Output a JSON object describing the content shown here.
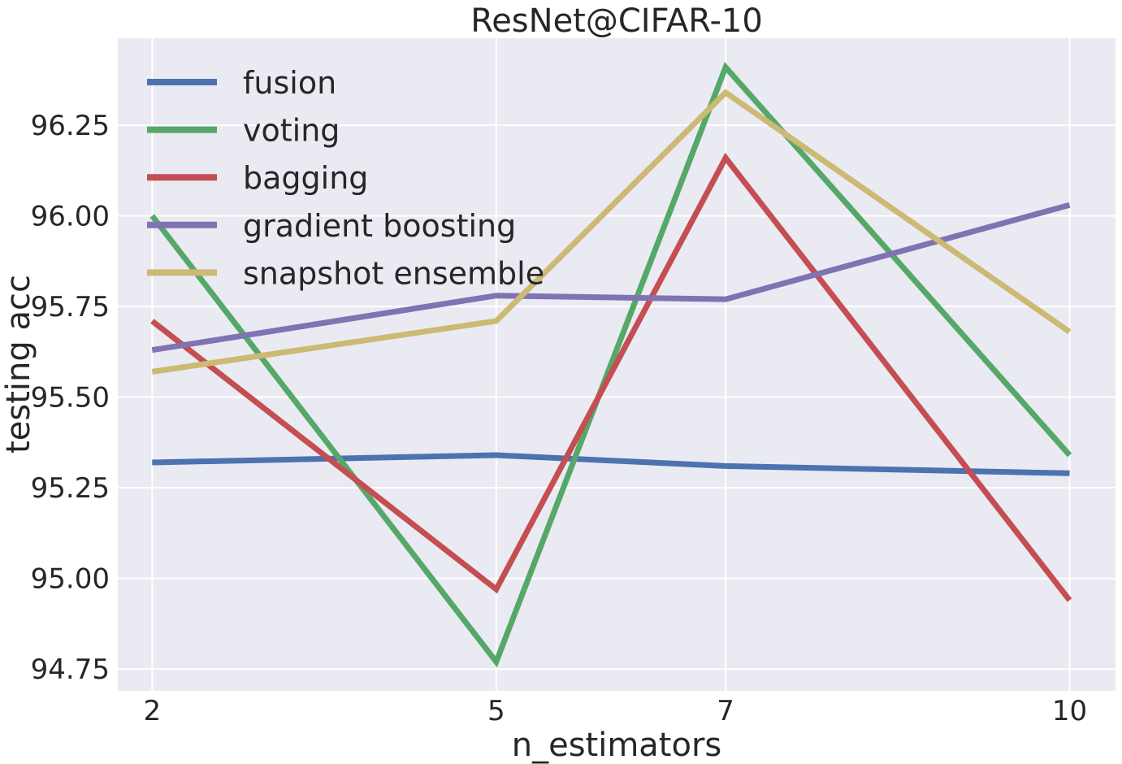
{
  "chart_data": {
    "type": "line",
    "title": "ResNet@CIFAR-10",
    "xlabel": "n_estimators",
    "ylabel": "testing acc",
    "x": [
      2,
      5,
      7,
      10
    ],
    "xticks": [
      2,
      5,
      7,
      10
    ],
    "xlim": [
      1.7,
      10.4
    ],
    "yticks": [
      94.75,
      95.0,
      95.25,
      95.5,
      95.75,
      96.0,
      96.25
    ],
    "ytick_labels": [
      "94.75",
      "95.00",
      "95.25",
      "95.50",
      "95.75",
      "96.00",
      "96.25"
    ],
    "ylim": [
      94.69,
      96.49
    ],
    "grid": true,
    "legend_position": "top-left",
    "background": "#eaeaf2",
    "series": [
      {
        "name": "fusion",
        "color": "#4c72b0",
        "values": [
          95.32,
          95.34,
          95.31,
          95.29
        ]
      },
      {
        "name": "voting",
        "color": "#55a868",
        "values": [
          96.0,
          94.77,
          96.41,
          95.34
        ]
      },
      {
        "name": "bagging",
        "color": "#c44e52",
        "values": [
          95.71,
          94.97,
          96.16,
          94.94
        ]
      },
      {
        "name": "gradient boosting",
        "color": "#8172b2",
        "values": [
          95.63,
          95.78,
          95.77,
          96.03
        ]
      },
      {
        "name": "snapshot ensemble",
        "color": "#ccb974",
        "values": [
          95.57,
          95.71,
          96.34,
          95.68
        ]
      }
    ]
  }
}
